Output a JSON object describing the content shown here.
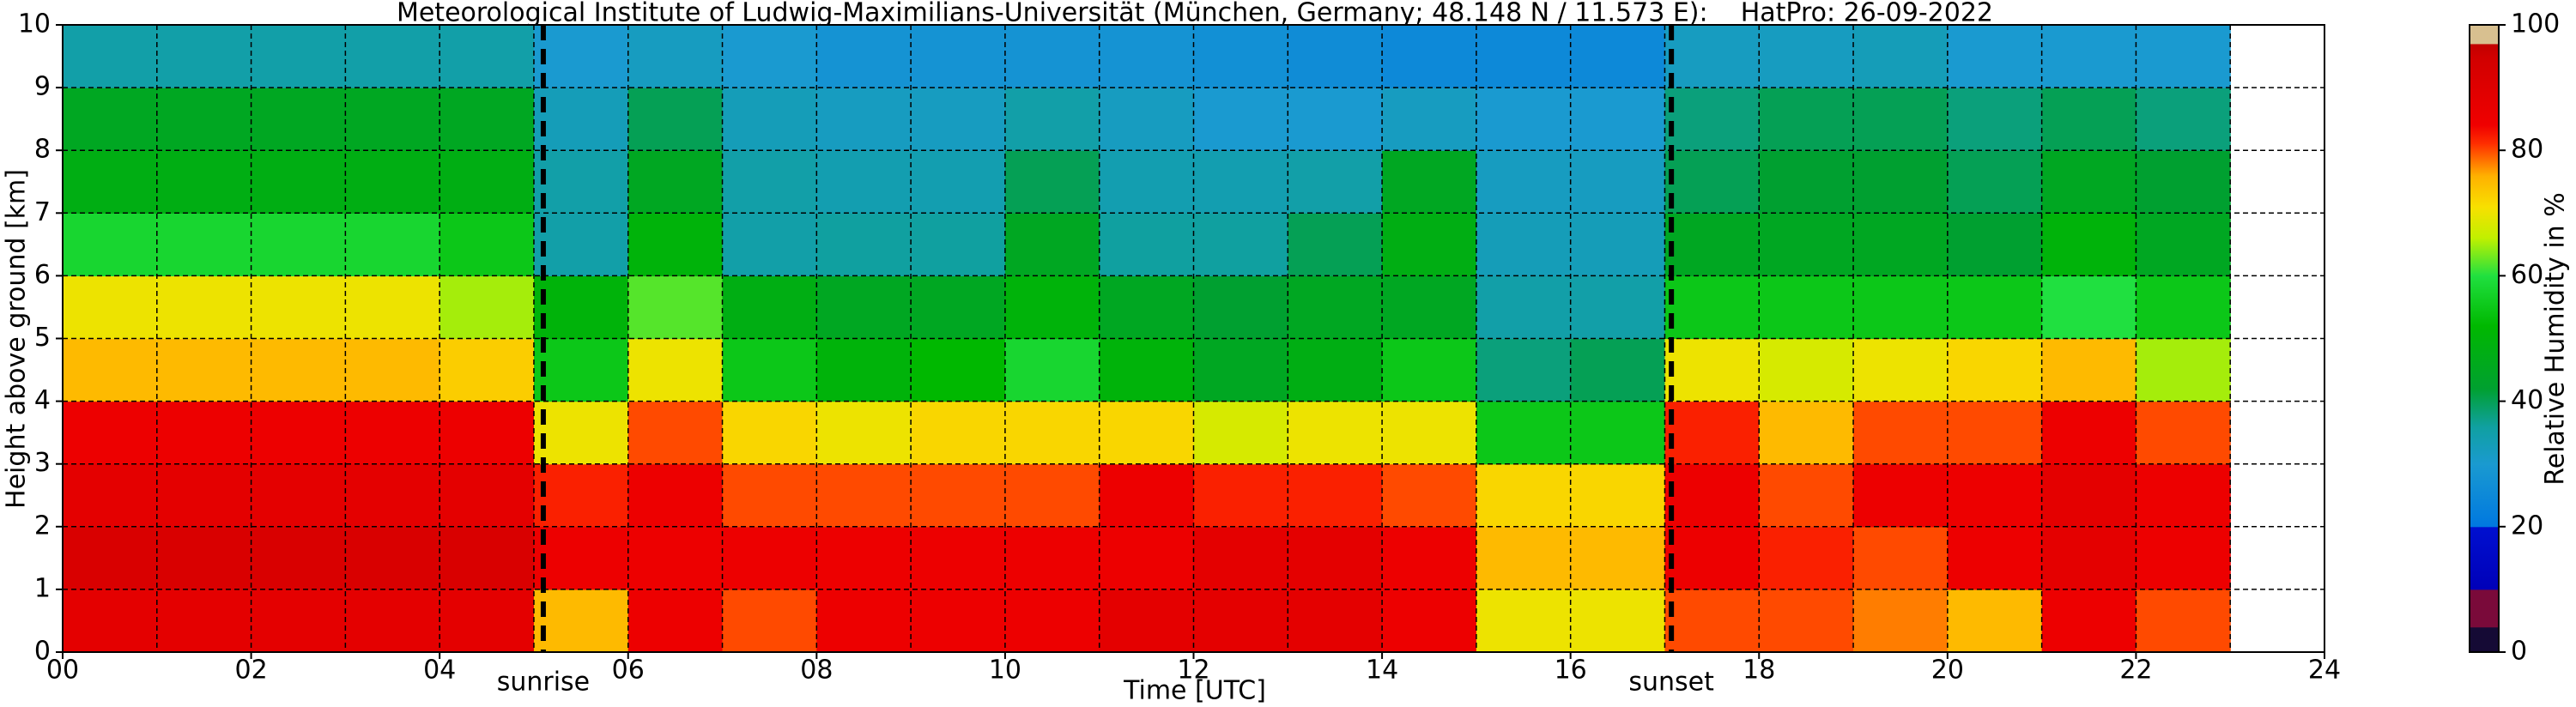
{
  "chart_data": {
    "type": "heatmap",
    "title": "Meteorological Institute of Ludwig-Maximilians-Universität (München, Germany; 48.148 N / 11.573 E):    HatPro: 26-09-2022",
    "xlabel": "Time [UTC]",
    "ylabel": "Height above ground [km]",
    "xlim": [
      0,
      24
    ],
    "ylim": [
      0,
      10
    ],
    "xticks": [
      {
        "value": 0,
        "label": "00"
      },
      {
        "value": 2,
        "label": "02"
      },
      {
        "value": 4,
        "label": "04"
      },
      {
        "value": 6,
        "label": "06"
      },
      {
        "value": 8,
        "label": "08"
      },
      10,
      12,
      14,
      16,
      18,
      20,
      22,
      24
    ],
    "xminor": [
      1,
      3,
      5,
      7,
      9,
      11,
      13,
      15,
      17,
      19,
      21,
      23
    ],
    "yticks": [
      0,
      1,
      2,
      3,
      4,
      5,
      6,
      7,
      8,
      9,
      10
    ],
    "grid": true,
    "xbins": [
      0,
      1,
      2,
      3,
      4,
      5,
      6,
      7,
      8,
      9,
      10,
      11,
      12,
      13,
      14,
      15,
      16,
      17,
      18,
      19,
      20,
      21,
      22,
      23
    ],
    "ybins": [
      0,
      1,
      2,
      3,
      4,
      5,
      6,
      7,
      8,
      9,
      10
    ],
    "z": [
      [
        88,
        88,
        88,
        88,
        88,
        75,
        85,
        80,
        85,
        85,
        85,
        88,
        88,
        88,
        85,
        70,
        70,
        80,
        80,
        78,
        75,
        85,
        80
      ],
      [
        92,
        92,
        92,
        92,
        92,
        85,
        85,
        85,
        85,
        85,
        85,
        85,
        88,
        88,
        85,
        75,
        75,
        85,
        82,
        80,
        85,
        88,
        85
      ],
      [
        88,
        88,
        88,
        88,
        88,
        82,
        85,
        80,
        80,
        80,
        80,
        85,
        82,
        82,
        80,
        72,
        72,
        85,
        80,
        85,
        85,
        88,
        85
      ],
      [
        85,
        85,
        85,
        85,
        85,
        70,
        80,
        72,
        70,
        72,
        72,
        72,
        68,
        70,
        70,
        55,
        55,
        82,
        75,
        80,
        80,
        85,
        80
      ],
      [
        75,
        75,
        75,
        75,
        73,
        55,
        70,
        55,
        50,
        52,
        58,
        50,
        45,
        48,
        55,
        38,
        40,
        70,
        68,
        70,
        72,
        75,
        65
      ],
      [
        70,
        70,
        70,
        70,
        65,
        50,
        62,
        48,
        45,
        45,
        50,
        45,
        42,
        45,
        45,
        35,
        35,
        55,
        55,
        55,
        55,
        60,
        55
      ],
      [
        58,
        58,
        58,
        58,
        55,
        35,
        50,
        35,
        36,
        36,
        45,
        36,
        36,
        40,
        48,
        33,
        33,
        45,
        45,
        45,
        42,
        50,
        45
      ],
      [
        48,
        48,
        48,
        48,
        48,
        35,
        45,
        35,
        34,
        34,
        40,
        34,
        34,
        35,
        45,
        32,
        32,
        40,
        42,
        42,
        40,
        45,
        42
      ],
      [
        45,
        45,
        45,
        45,
        45,
        33,
        40,
        33,
        32,
        32,
        35,
        32,
        30,
        30,
        32,
        30,
        30,
        38,
        40,
        40,
        38,
        40,
        38
      ],
      [
        35,
        35,
        35,
        35,
        35,
        30,
        32,
        30,
        28,
        28,
        28,
        28,
        27,
        26,
        25,
        25,
        25,
        32,
        32,
        33,
        30,
        30,
        30
      ]
    ],
    "vlines": [
      {
        "x": 5.1,
        "label": "sunrise"
      },
      {
        "x": 17.07,
        "label": "sunset"
      }
    ],
    "colorbar": {
      "label": "Relative Humidity in %",
      "lim": [
        0,
        100
      ],
      "ticks": [
        0,
        20,
        40,
        60,
        80,
        100
      ],
      "stops": [
        [
          0,
          "#150a35"
        ],
        [
          4,
          "#150a35"
        ],
        [
          4,
          "#7a0a3a"
        ],
        [
          10,
          "#7a0a3a"
        ],
        [
          10,
          "#0000b8"
        ],
        [
          20,
          "#0010d0"
        ],
        [
          20,
          "#0078e0"
        ],
        [
          30,
          "#1a9ad0"
        ],
        [
          36,
          "#10a0a0"
        ],
        [
          42,
          "#00a030"
        ],
        [
          52,
          "#00b800"
        ],
        [
          60,
          "#20e040"
        ],
        [
          66,
          "#c0f000"
        ],
        [
          71,
          "#f8e000"
        ],
        [
          76,
          "#ffb000"
        ],
        [
          81,
          "#ff3000"
        ],
        [
          84,
          "#f00000"
        ],
        [
          95,
          "#d00000"
        ],
        [
          97,
          "#c00000"
        ],
        [
          97,
          "#d8c090"
        ],
        [
          100,
          "#d8c090"
        ]
      ]
    }
  }
}
